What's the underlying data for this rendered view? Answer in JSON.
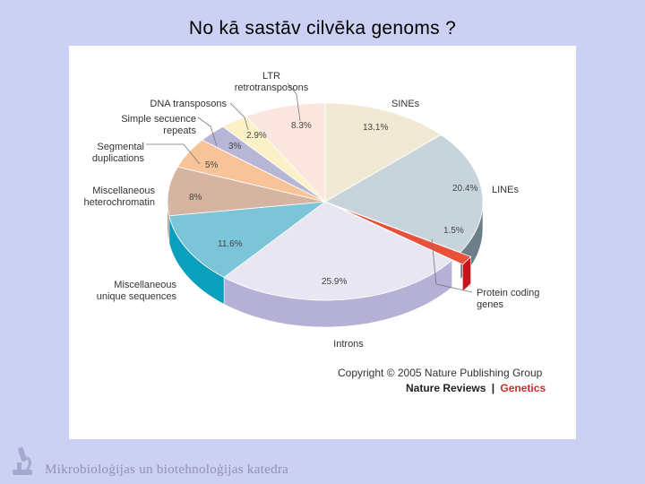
{
  "slide_title": "No kā sastāv cilvēka genoms ?",
  "footer_text": "Mikrobioloģijas un biotehnoloģijas katedra",
  "credits": {
    "copyright": "Copyright © 2005 Nature Publishing Group",
    "journal": "Nature Reviews",
    "separator": "|",
    "section": "Genetics"
  },
  "chart_data": {
    "type": "pie",
    "title": "",
    "unit": "%",
    "slices": [
      {
        "name": "SINEs",
        "label_lines": [
          "SINEs"
        ],
        "value": 13.1,
        "label": "13.1%",
        "color": "#f1e9d4",
        "side_color": "#c9bfa8"
      },
      {
        "name": "LINEs",
        "label_lines": [
          "LINEs"
        ],
        "value": 20.4,
        "label": "20.4%",
        "color": "#c8d4dc",
        "side_color": "#6c7f89"
      },
      {
        "name": "Protein coding genes",
        "label_lines": [
          "Protein coding",
          "genes"
        ],
        "value": 1.5,
        "label": "1.5%",
        "color": "#e8503a",
        "side_color": "#c8141c"
      },
      {
        "name": "Introns",
        "label_lines": [
          "Introns"
        ],
        "value": 25.9,
        "label": "25.9%",
        "color": "#e8e6f2",
        "side_color": "#b4b0d6"
      },
      {
        "name": "Miscellaneous unique sequences",
        "label_lines": [
          "Miscellaneous",
          "unique sequences"
        ],
        "value": 11.6,
        "label": "11.6%",
        "color": "#7cc4d8",
        "side_color": "#0aa0bc"
      },
      {
        "name": "Miscellaneous heterochromatin",
        "label_lines": [
          "Miscellaneous",
          "heterochromatin"
        ],
        "value": 8,
        "label": "8%",
        "color": "#d6b4a2",
        "side_color": "#9c7662"
      },
      {
        "name": "Segmental duplications",
        "label_lines": [
          "Segmental",
          "duplications"
        ],
        "value": 5,
        "label": "5%",
        "color": "#f6c498",
        "side_color": "#c88f62"
      },
      {
        "name": "Simple secuence repeats",
        "label_lines": [
          "Simple secuence",
          "repeats"
        ],
        "value": 3,
        "label": "3%",
        "color": "#b6b6d6",
        "side_color": "#8484aa"
      },
      {
        "name": "DNA transposons",
        "label_lines": [
          "DNA transposons"
        ],
        "value": 2.9,
        "label": "2.9%",
        "color": "#fcf0c6",
        "side_color": "#cdbf90"
      },
      {
        "name": "LTR retrotransposons",
        "label_lines": [
          "LTR",
          "retrotransposons"
        ],
        "value": 8.3,
        "label": "8.3%",
        "color": "#fae6de",
        "side_color": "#c9b0a6"
      }
    ]
  }
}
